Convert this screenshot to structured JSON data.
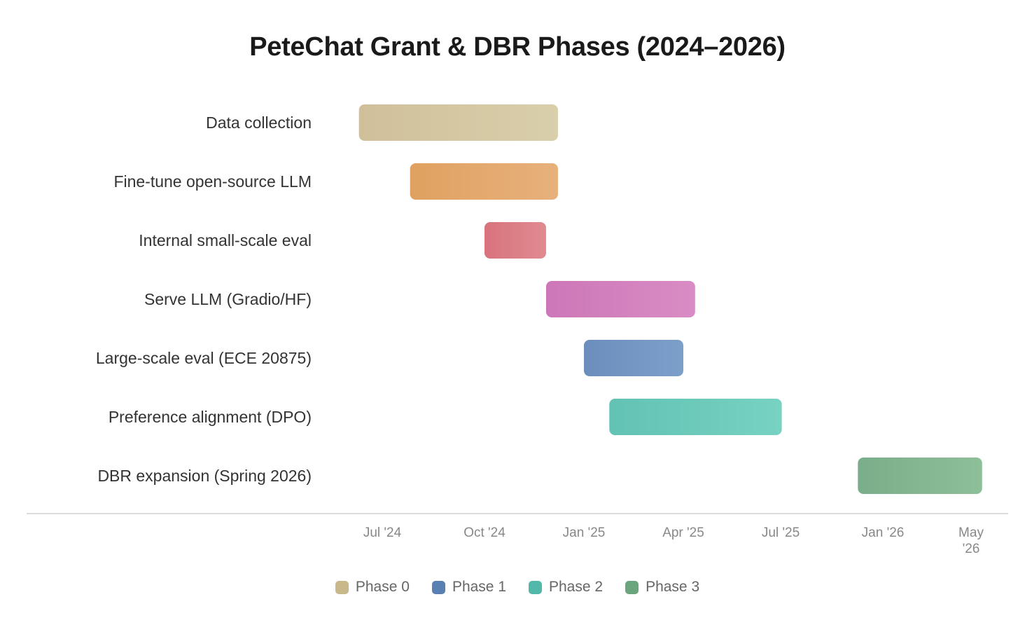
{
  "chart_data": {
    "type": "gantt",
    "title": "PeteChat Grant & DBR Phases (2024–2026)",
    "x_ticks": [
      {
        "label": "Jul '24",
        "date": "2024-07-01"
      },
      {
        "label": "Oct '24",
        "date": "2024-10-01"
      },
      {
        "label": "Jan '25",
        "date": "2025-01-01"
      },
      {
        "label": "Apr '25",
        "date": "2025-04-01"
      },
      {
        "label": "Jul '25",
        "date": "2025-07-01"
      },
      {
        "label": "Jan '26",
        "date": "2026-01-01"
      },
      {
        "label": "May '26",
        "date": "2026-05-01"
      }
    ],
    "tasks": [
      {
        "name": "Data collection",
        "start": "2024-06-10",
        "end": "2024-12-08",
        "phase": "Phase 0",
        "color": "#d0c09a",
        "color2": "#d9cfab"
      },
      {
        "name": "Fine-tune open-source LLM",
        "start": "2024-07-26",
        "end": "2024-12-08",
        "phase": "Phase 0",
        "color": "#e0a160",
        "color2": "#e7b17c"
      },
      {
        "name": "Internal small-scale eval",
        "start": "2024-10-01",
        "end": "2024-11-27",
        "phase": "Phase 0",
        "color": "#d8737c",
        "color2": "#e08b91"
      },
      {
        "name": "Serve LLM (Gradio/HF)",
        "start": "2024-11-27",
        "end": "2025-04-12",
        "phase": "Phase 1",
        "color": "#cd77b8",
        "color2": "#d98cc4"
      },
      {
        "name": "Large-scale eval (ECE 20875)",
        "start": "2025-01-01",
        "end": "2025-04-01",
        "phase": "Phase 1",
        "color": "#6b8ebd",
        "color2": "#7c9fca"
      },
      {
        "name": "Preference alignment (DPO)",
        "start": "2025-01-24",
        "end": "2025-07-03",
        "phase": "Phase 2",
        "color": "#62c2b4",
        "color2": "#77d2c2"
      },
      {
        "name": "DBR expansion (Spring 2026)",
        "start": "2025-11-17",
        "end": "2026-05-16",
        "phase": "Phase 3",
        "color": "#7aae8a",
        "color2": "#8dc099"
      }
    ],
    "legend": [
      {
        "label": "Phase 0",
        "color": "#c9b98a"
      },
      {
        "label": "Phase 1",
        "color": "#5a7fb3"
      },
      {
        "label": "Phase 2",
        "color": "#52b9aa"
      },
      {
        "label": "Phase 3",
        "color": "#6aa57e"
      }
    ],
    "legend_position": "bottom",
    "grid": false
  }
}
